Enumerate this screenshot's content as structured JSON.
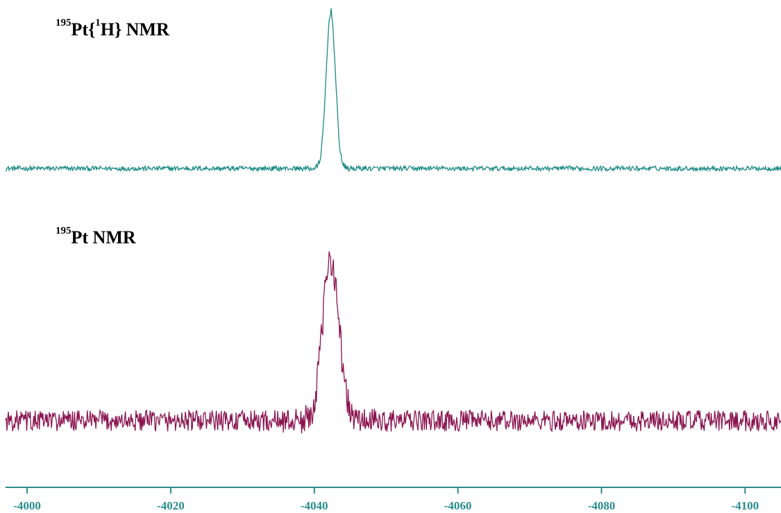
{
  "chart_data": {
    "type": "line",
    "title": "",
    "xlabel": "",
    "ylabel": "",
    "x_reversed": true,
    "xlim": [
      -3997,
      -4105
    ],
    "x_ticks": [
      -4000,
      -4020,
      -4040,
      -4060,
      -4080,
      -4100
    ],
    "tick_labels": [
      "-4000",
      "-4020",
      "-4040",
      "-4060",
      "-4080",
      "-4100"
    ],
    "axis_color": "#2a8c8c",
    "series": [
      {
        "name": "195Pt{1H} NMR",
        "label_sup": "195",
        "label_main_a": "Pt{",
        "label_sup2": "1",
        "label_main_b": "H} NMR",
        "color": "#1a8a84",
        "peak_ppm": -4042.3,
        "peak_height_rel": 1.0,
        "peak_width_ppm": 0.9,
        "noise_rel": 0.03
      },
      {
        "name": "195Pt NMR",
        "label_sup": "195",
        "label_main": "Pt NMR",
        "color": "#8a1450",
        "peak_ppm": -4042.3,
        "peak_height_rel": 1.0,
        "peak_width_ppm": 1.6,
        "noise_rel": 0.13
      }
    ]
  }
}
